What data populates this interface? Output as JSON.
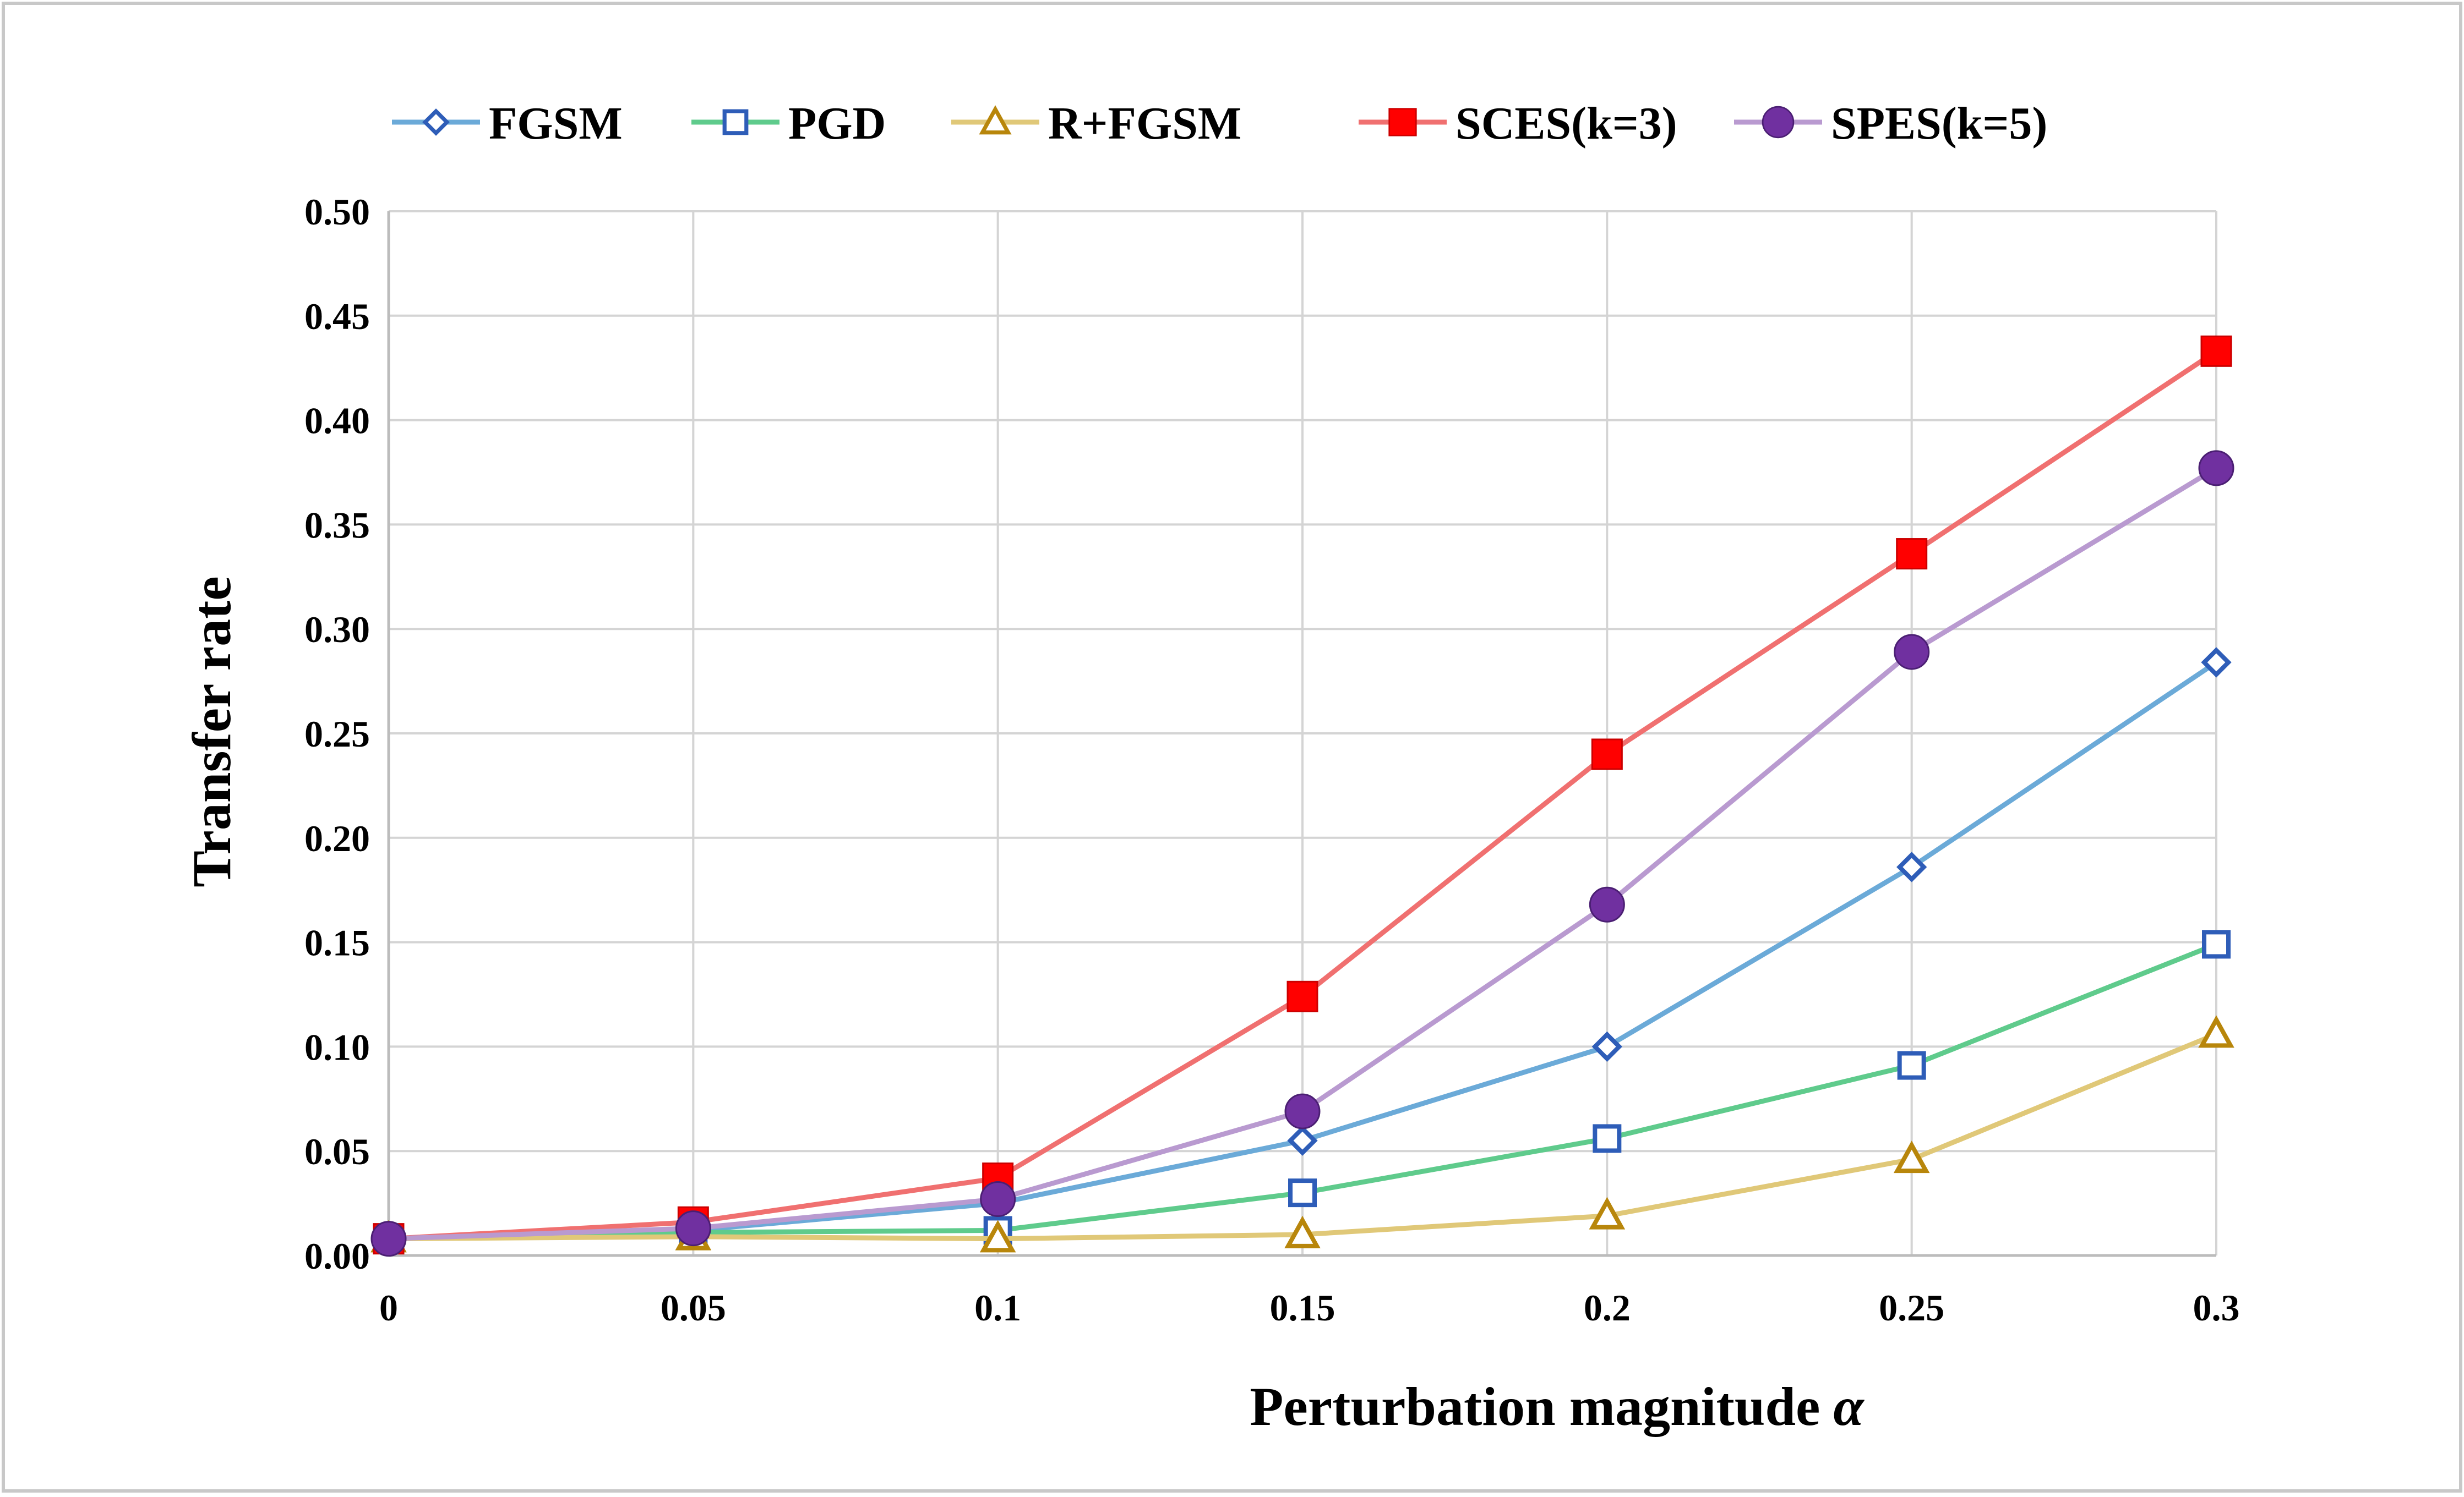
{
  "chart_data": {
    "type": "line",
    "xlabel": "Perturbation magnitude",
    "xlabel_symbol": "α",
    "ylabel": "Transfer rate",
    "x": [
      0,
      0.05,
      0.1,
      0.15,
      0.2,
      0.25,
      0.3
    ],
    "x_tick_labels": [
      "0",
      "0.05",
      "0.1",
      "0.15",
      "0.2",
      "0.25",
      "0.3"
    ],
    "y_tick_labels": [
      "0.00",
      "0.05",
      "0.10",
      "0.15",
      "0.20",
      "0.25",
      "0.30",
      "0.35",
      "0.40",
      "0.45",
      "0.50"
    ],
    "ylim": [
      0,
      0.5
    ],
    "xlim": [
      0,
      0.3
    ],
    "grid": true,
    "legend_position": "top",
    "series": [
      {
        "name": "FGSM",
        "marker": "diamond-open",
        "line_color": "#6BAAD8",
        "marker_color": "#2E5DB8",
        "values": [
          0.008,
          0.012,
          0.025,
          0.055,
          0.1,
          0.186,
          0.284
        ]
      },
      {
        "name": "PGD",
        "marker": "square-open",
        "line_color": "#5FCB8C",
        "marker_color": "#2E5DB8",
        "values": [
          0.008,
          0.011,
          0.012,
          0.03,
          0.056,
          0.091,
          0.149
        ]
      },
      {
        "name": "R+FGSM",
        "marker": "triangle-open",
        "line_color": "#E0C878",
        "marker_color": "#B8860B",
        "values": [
          0.008,
          0.009,
          0.008,
          0.01,
          0.019,
          0.046,
          0.106
        ]
      },
      {
        "name": "SCES(k=3)",
        "marker": "square-filled",
        "line_color": "#F07070",
        "marker_color": "#FF0000",
        "values": [
          0.008,
          0.016,
          0.037,
          0.124,
          0.24,
          0.336,
          0.433
        ]
      },
      {
        "name": "SPES(k=5)",
        "marker": "circle-filled",
        "line_color": "#B99AD0",
        "marker_color": "#7030A0",
        "values": [
          0.008,
          0.013,
          0.027,
          0.069,
          0.168,
          0.289,
          0.377
        ]
      }
    ]
  }
}
